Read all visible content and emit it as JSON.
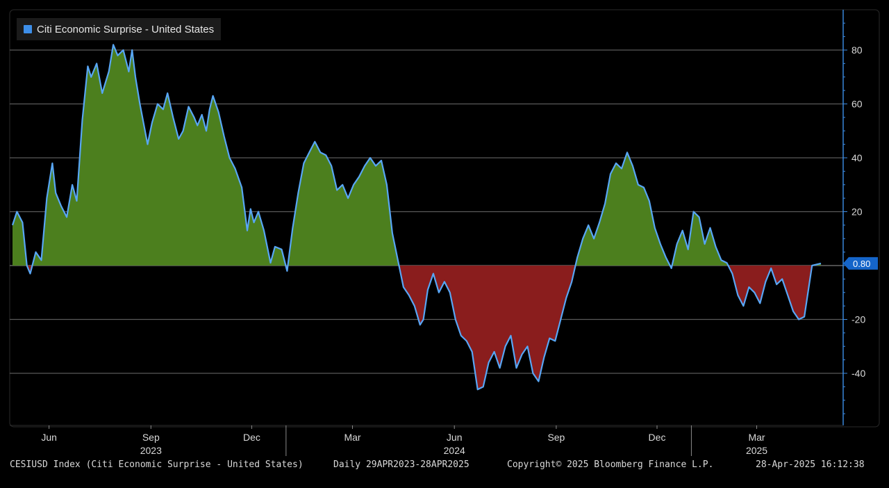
{
  "chart_data": {
    "type": "area",
    "legend": {
      "label": "Citi Economic Surprise - United States",
      "color": "#3d8ee8",
      "position": "top-left"
    },
    "positive_fill": "#4c7f1e",
    "negative_fill": "#8a1d1d",
    "line_color": "#58a6f5",
    "ylim": [
      -60,
      90
    ],
    "yticks": [
      80,
      60,
      40,
      20,
      0,
      -20,
      -40
    ],
    "ytick_labels": [
      "80",
      "60",
      "40",
      "20",
      "",
      "-20",
      "-40"
    ],
    "xlim": [
      "2023-04-29",
      "2025-04-28"
    ],
    "month_ticks": [
      {
        "date": "2023-06-01",
        "label": "Jun"
      },
      {
        "date": "2023-09-01",
        "label": "Sep"
      },
      {
        "date": "2023-12-01",
        "label": "Dec"
      },
      {
        "date": "2024-03-01",
        "label": "Mar"
      },
      {
        "date": "2024-06-01",
        "label": "Jun"
      },
      {
        "date": "2024-09-01",
        "label": "Sep"
      },
      {
        "date": "2024-12-01",
        "label": "Dec"
      },
      {
        "date": "2025-03-01",
        "label": "Mar"
      }
    ],
    "year_labels": [
      {
        "date": "2023-09-01",
        "label": "2023"
      },
      {
        "date": "2024-06-01",
        "label": "2024"
      },
      {
        "date": "2025-03-01",
        "label": "2025"
      }
    ],
    "year_dividers": [
      "2024-01-01",
      "2025-01-01"
    ],
    "last_value": 0.8,
    "last_value_label": "0.80",
    "points": [
      [
        "2023-04-29",
        15
      ],
      [
        "2023-05-03",
        20
      ],
      [
        "2023-05-08",
        16
      ],
      [
        "2023-05-12",
        0
      ],
      [
        "2023-05-15",
        -3
      ],
      [
        "2023-05-20",
        5
      ],
      [
        "2023-05-25",
        2
      ],
      [
        "2023-05-30",
        25
      ],
      [
        "2023-06-04",
        38
      ],
      [
        "2023-06-07",
        27
      ],
      [
        "2023-06-12",
        22
      ],
      [
        "2023-06-17",
        18
      ],
      [
        "2023-06-22",
        30
      ],
      [
        "2023-06-26",
        24
      ],
      [
        "2023-07-01",
        54
      ],
      [
        "2023-07-06",
        74
      ],
      [
        "2023-07-09",
        70
      ],
      [
        "2023-07-14",
        75
      ],
      [
        "2023-07-19",
        64
      ],
      [
        "2023-07-25",
        72
      ],
      [
        "2023-07-29",
        82
      ],
      [
        "2023-08-02",
        78
      ],
      [
        "2023-08-07",
        80
      ],
      [
        "2023-08-12",
        72
      ],
      [
        "2023-08-15",
        80
      ],
      [
        "2023-08-18",
        70
      ],
      [
        "2023-08-22",
        60
      ],
      [
        "2023-08-29",
        45
      ],
      [
        "2023-09-02",
        53
      ],
      [
        "2023-09-07",
        60
      ],
      [
        "2023-09-12",
        58
      ],
      [
        "2023-09-16",
        64
      ],
      [
        "2023-09-21",
        55
      ],
      [
        "2023-09-26",
        47
      ],
      [
        "2023-09-30",
        50
      ],
      [
        "2023-10-05",
        59
      ],
      [
        "2023-10-10",
        55
      ],
      [
        "2023-10-13",
        52
      ],
      [
        "2023-10-17",
        56
      ],
      [
        "2023-10-21",
        50
      ],
      [
        "2023-10-24",
        58
      ],
      [
        "2023-10-27",
        63
      ],
      [
        "2023-11-01",
        57
      ],
      [
        "2023-11-06",
        48
      ],
      [
        "2023-11-11",
        40
      ],
      [
        "2023-11-16",
        36
      ],
      [
        "2023-11-22",
        29
      ],
      [
        "2023-11-27",
        13
      ],
      [
        "2023-11-30",
        21
      ],
      [
        "2023-12-03",
        16
      ],
      [
        "2023-12-07",
        20
      ],
      [
        "2023-12-12",
        13
      ],
      [
        "2023-12-18",
        1
      ],
      [
        "2023-12-22",
        7
      ],
      [
        "2023-12-28",
        6
      ],
      [
        "2024-01-02",
        -2
      ],
      [
        "2024-01-07",
        14
      ],
      [
        "2024-01-12",
        27
      ],
      [
        "2024-01-17",
        38
      ],
      [
        "2024-01-22",
        42
      ],
      [
        "2024-01-27",
        46
      ],
      [
        "2024-02-01",
        42
      ],
      [
        "2024-02-06",
        41
      ],
      [
        "2024-02-11",
        37
      ],
      [
        "2024-02-16",
        28
      ],
      [
        "2024-02-21",
        30
      ],
      [
        "2024-02-26",
        25
      ],
      [
        "2024-03-02",
        30
      ],
      [
        "2024-03-07",
        33
      ],
      [
        "2024-03-12",
        37
      ],
      [
        "2024-03-17",
        40
      ],
      [
        "2024-03-22",
        37
      ],
      [
        "2024-03-27",
        39
      ],
      [
        "2024-04-01",
        30
      ],
      [
        "2024-04-06",
        12
      ],
      [
        "2024-04-11",
        2
      ],
      [
        "2024-04-16",
        -8
      ],
      [
        "2024-04-21",
        -11
      ],
      [
        "2024-04-26",
        -15
      ],
      [
        "2024-05-01",
        -22
      ],
      [
        "2024-05-04",
        -20
      ],
      [
        "2024-05-08",
        -9
      ],
      [
        "2024-05-13",
        -3
      ],
      [
        "2024-05-18",
        -10
      ],
      [
        "2024-05-23",
        -6
      ],
      [
        "2024-05-28",
        -10
      ],
      [
        "2024-06-02",
        -20
      ],
      [
        "2024-06-07",
        -26
      ],
      [
        "2024-06-12",
        -28
      ],
      [
        "2024-06-17",
        -32
      ],
      [
        "2024-06-22",
        -46
      ],
      [
        "2024-06-27",
        -45
      ],
      [
        "2024-07-02",
        -36
      ],
      [
        "2024-07-07",
        -32
      ],
      [
        "2024-07-12",
        -38
      ],
      [
        "2024-07-17",
        -30
      ],
      [
        "2024-07-22",
        -26
      ],
      [
        "2024-07-27",
        -38
      ],
      [
        "2024-08-01",
        -33
      ],
      [
        "2024-08-06",
        -30
      ],
      [
        "2024-08-11",
        -40
      ],
      [
        "2024-08-16",
        -43
      ],
      [
        "2024-08-21",
        -34
      ],
      [
        "2024-08-26",
        -27
      ],
      [
        "2024-08-31",
        -28
      ],
      [
        "2024-09-05",
        -20
      ],
      [
        "2024-09-10",
        -12
      ],
      [
        "2024-09-15",
        -6
      ],
      [
        "2024-09-20",
        3
      ],
      [
        "2024-09-25",
        10
      ],
      [
        "2024-09-30",
        15
      ],
      [
        "2024-10-05",
        10
      ],
      [
        "2024-10-10",
        16
      ],
      [
        "2024-10-15",
        23
      ],
      [
        "2024-10-20",
        34
      ],
      [
        "2024-10-25",
        38
      ],
      [
        "2024-10-30",
        36
      ],
      [
        "2024-11-04",
        42
      ],
      [
        "2024-11-09",
        37
      ],
      [
        "2024-11-14",
        30
      ],
      [
        "2024-11-19",
        29
      ],
      [
        "2024-11-24",
        24
      ],
      [
        "2024-11-29",
        14
      ],
      [
        "2024-12-04",
        8
      ],
      [
        "2024-12-09",
        3
      ],
      [
        "2024-12-14",
        -1
      ],
      [
        "2024-12-19",
        8
      ],
      [
        "2024-12-24",
        13
      ],
      [
        "2024-12-29",
        6
      ],
      [
        "2025-01-03",
        20
      ],
      [
        "2025-01-08",
        18
      ],
      [
        "2025-01-13",
        8
      ],
      [
        "2025-01-18",
        14
      ],
      [
        "2025-01-23",
        7
      ],
      [
        "2025-01-28",
        2
      ],
      [
        "2025-02-02",
        1
      ],
      [
        "2025-02-07",
        -3
      ],
      [
        "2025-02-12",
        -11
      ],
      [
        "2025-02-17",
        -15
      ],
      [
        "2025-02-22",
        -8
      ],
      [
        "2025-02-27",
        -10
      ],
      [
        "2025-03-04",
        -14
      ],
      [
        "2025-03-09",
        -6
      ],
      [
        "2025-03-14",
        -1
      ],
      [
        "2025-03-19",
        -7
      ],
      [
        "2025-03-24",
        -5
      ],
      [
        "2025-03-29",
        -11
      ],
      [
        "2025-04-03",
        -17
      ],
      [
        "2025-04-08",
        -20
      ],
      [
        "2025-04-13",
        -19
      ],
      [
        "2025-04-20",
        0
      ],
      [
        "2025-04-28",
        0.8
      ]
    ]
  },
  "footer": {
    "left": "CESIUSD Index (Citi Economic Surprise - United States)",
    "middle": "Daily 29APR2023-28APR2025",
    "copyright": "Copyright© 2025 Bloomberg Finance L.P.",
    "timestamp": "28-Apr-2025 16:12:38"
  }
}
